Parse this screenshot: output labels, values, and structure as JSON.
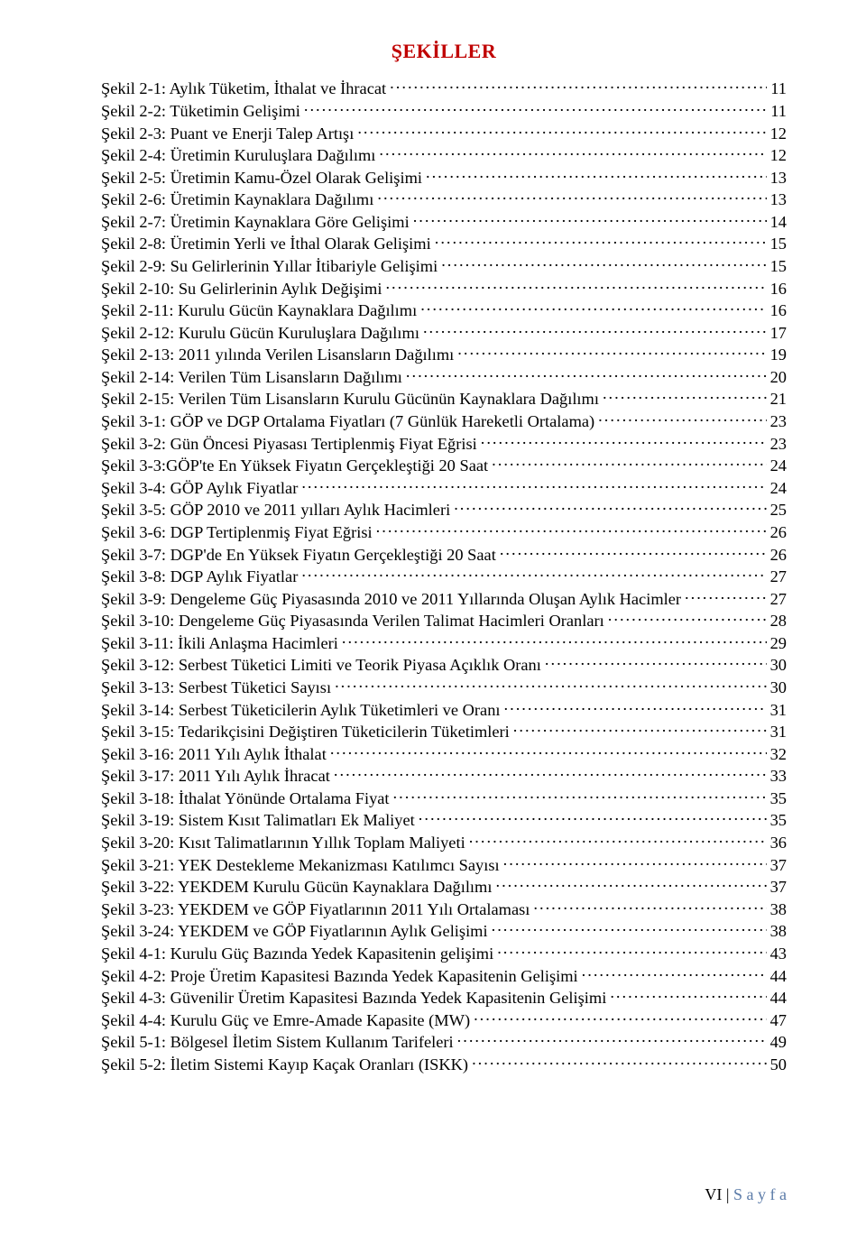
{
  "title": "ŞEKİLLER",
  "entries": [
    {
      "label": "Şekil 2-1: Aylık Tüketim, İthalat ve İhracat",
      "page": "11"
    },
    {
      "label": "Şekil 2-2: Tüketimin Gelişimi",
      "page": "11"
    },
    {
      "label": "Şekil 2-3: Puant ve Enerji Talep Artışı",
      "page": "12"
    },
    {
      "label": "Şekil 2-4: Üretimin Kuruluşlara Dağılımı",
      "page": "12"
    },
    {
      "label": "Şekil 2-5: Üretimin Kamu-Özel Olarak Gelişimi",
      "page": "13"
    },
    {
      "label": "Şekil 2-6: Üretimin Kaynaklara Dağılımı",
      "page": "13"
    },
    {
      "label": "Şekil 2-7: Üretimin Kaynaklara Göre Gelişimi",
      "page": "14"
    },
    {
      "label": "Şekil 2-8: Üretimin Yerli ve İthal Olarak Gelişimi",
      "page": "15"
    },
    {
      "label": "Şekil 2-9: Su Gelirlerinin Yıllar İtibariyle Gelişimi",
      "page": "15"
    },
    {
      "label": "Şekil 2-10: Su Gelirlerinin Aylık Değişimi",
      "page": "16"
    },
    {
      "label": "Şekil 2-11: Kurulu Gücün Kaynaklara Dağılımı",
      "page": "16"
    },
    {
      "label": "Şekil 2-12: Kurulu Gücün Kuruluşlara Dağılımı",
      "page": "17"
    },
    {
      "label": "Şekil 2-13: 2011 yılında Verilen Lisansların Dağılımı",
      "page": "19"
    },
    {
      "label": "Şekil 2-14: Verilen Tüm Lisansların Dağılımı",
      "page": "20"
    },
    {
      "label": "Şekil 2-15: Verilen Tüm Lisansların Kurulu Gücünün Kaynaklara Dağılımı",
      "page": "21"
    },
    {
      "label": "Şekil 3-1: GÖP ve DGP Ortalama Fiyatları (7 Günlük Hareketli Ortalama)",
      "page": "23"
    },
    {
      "label": "Şekil 3-2: Gün Öncesi Piyasası Tertiplenmiş Fiyat Eğrisi",
      "page": "23"
    },
    {
      "label": "Şekil 3-3:GÖP'te En Yüksek Fiyatın Gerçekleştiği 20 Saat",
      "page": "24"
    },
    {
      "label": "Şekil 3-4: GÖP Aylık Fiyatlar",
      "page": "24"
    },
    {
      "label": "Şekil 3-5: GÖP 2010 ve 2011 yılları Aylık Hacimleri",
      "page": "25"
    },
    {
      "label": "Şekil 3-6: DGP Tertiplenmiş Fiyat Eğrisi",
      "page": "26"
    },
    {
      "label": "Şekil 3-7: DGP'de En Yüksek Fiyatın Gerçekleştiği 20 Saat",
      "page": "26"
    },
    {
      "label": "Şekil 3-8: DGP Aylık Fiyatlar",
      "page": "27"
    },
    {
      "label": "Şekil 3-9: Dengeleme Güç Piyasasında 2010 ve 2011 Yıllarında Oluşan Aylık Hacimler",
      "page": "27"
    },
    {
      "label": "Şekil 3-10: Dengeleme Güç Piyasasında Verilen Talimat Hacimleri Oranları",
      "page": "28"
    },
    {
      "label": "Şekil 3-11: İkili Anlaşma Hacimleri",
      "page": "29"
    },
    {
      "label": "Şekil 3-12: Serbest Tüketici Limiti ve Teorik Piyasa Açıklık Oranı",
      "page": "30"
    },
    {
      "label": "Şekil 3-13: Serbest Tüketici Sayısı",
      "page": "30"
    },
    {
      "label": "Şekil 3-14: Serbest Tüketicilerin Aylık Tüketimleri ve Oranı",
      "page": "31"
    },
    {
      "label": "Şekil 3-15: Tedarikçisini Değiştiren Tüketicilerin Tüketimleri",
      "page": "31"
    },
    {
      "label": "Şekil 3-16: 2011 Yılı Aylık İthalat",
      "page": "32"
    },
    {
      "label": "Şekil 3-17: 2011 Yılı Aylık İhracat",
      "page": "33"
    },
    {
      "label": "Şekil 3-18: İthalat Yönünde Ortalama Fiyat",
      "page": "35"
    },
    {
      "label": "Şekil 3-19: Sistem Kısıt Talimatları Ek Maliyet",
      "page": "35"
    },
    {
      "label": "Şekil 3-20: Kısıt Talimatlarının Yıllık Toplam Maliyeti",
      "page": "36"
    },
    {
      "label": "Şekil 3-21: YEK Destekleme Mekanizması Katılımcı Sayısı",
      "page": "37"
    },
    {
      "label": "Şekil 3-22: YEKDEM Kurulu Gücün Kaynaklara Dağılımı",
      "page": "37"
    },
    {
      "label": "Şekil 3-23: YEKDEM ve GÖP Fiyatlarının 2011 Yılı Ortalaması",
      "page": "38"
    },
    {
      "label": "Şekil 3-24: YEKDEM ve GÖP Fiyatlarının Aylık Gelişimi",
      "page": "38"
    },
    {
      "label": "Şekil 4-1: Kurulu Güç Bazında Yedek Kapasitenin gelişimi",
      "page": "43"
    },
    {
      "label": "Şekil 4-2: Proje Üretim Kapasitesi Bazında Yedek Kapasitenin Gelişimi",
      "page": "44"
    },
    {
      "label": "Şekil 4-3: Güvenilir Üretim Kapasitesi Bazında Yedek Kapasitenin Gelişimi",
      "page": "44"
    },
    {
      "label": "Şekil 4-4: Kurulu Güç ve Emre-Amade Kapasite (MW)",
      "page": "47"
    },
    {
      "label": "Şekil 5-1: Bölgesel İletim Sistem Kullanım Tarifeleri",
      "page": "49"
    },
    {
      "label": "Şekil 5-2: İletim Sistemi Kayıp Kaçak Oranları (ISKK)",
      "page": "50"
    }
  ],
  "footer": {
    "roman": "VI",
    "divider": " | ",
    "sayfa": "S a y f a"
  }
}
